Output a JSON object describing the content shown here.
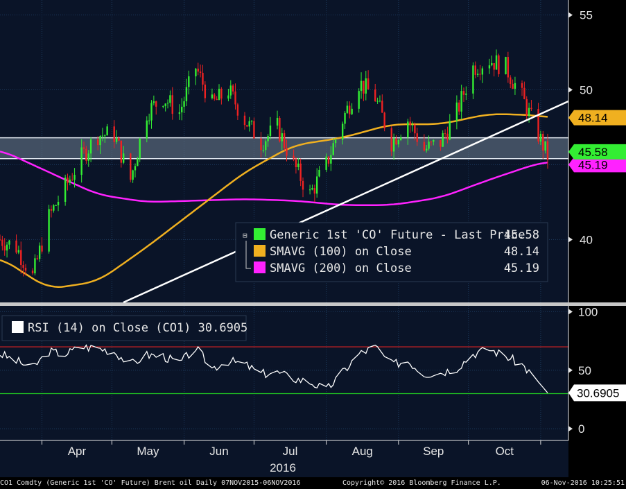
{
  "colors": {
    "background": "#0a1428",
    "price_green": "#33ee33",
    "price_red": "#ee2222",
    "sma100": "#f0b020",
    "sma200": "#ff22ff",
    "rsi": "#ffffff",
    "rsi_upper": "#dd2222",
    "rsi_lower": "#22cc22",
    "trendline": "#ffffff"
  },
  "chart_data": [
    {
      "type": "candlestick",
      "panel": "price",
      "y_ticks": [
        40,
        50,
        55
      ],
      "ylim": [
        35.8,
        56
      ],
      "x_months": [
        "Apr",
        "May",
        "Jun",
        "Jul",
        "Aug",
        "Sep",
        "Oct"
      ],
      "x_year": "2016",
      "legend": [
        {
          "label": "Generic 1st 'CO' Future - Last Price",
          "value": "45.58",
          "color": "#33ee33"
        },
        {
          "label": "SMAVG (100) on Close",
          "value": "48.14",
          "color": "#f0b020"
        },
        {
          "label": "SMAVG (200) on Close",
          "value": "45.19",
          "color": "#ff22ff"
        }
      ],
      "last_labels": [
        {
          "value": "48.14",
          "bg": "#f0b020"
        },
        {
          "value": "45.58",
          "bg": "#33ee33"
        },
        {
          "value": "45.19",
          "bg": "#ff22ff"
        }
      ],
      "close_series": {
        "dates": [
          "2016-03-14",
          "2016-03-21",
          "2016-03-28",
          "2016-04-04",
          "2016-04-11",
          "2016-04-18",
          "2016-04-25",
          "2016-05-02",
          "2016-05-09",
          "2016-05-16",
          "2016-05-23",
          "2016-05-30",
          "2016-06-06",
          "2016-06-13",
          "2016-06-20",
          "2016-06-27",
          "2016-07-04",
          "2016-07-11",
          "2016-07-18",
          "2016-07-25",
          "2016-08-01",
          "2016-08-08",
          "2016-08-15",
          "2016-08-22",
          "2016-08-29",
          "2016-09-05",
          "2016-09-12",
          "2016-09-19",
          "2016-09-26",
          "2016-10-03",
          "2016-10-10",
          "2016-10-17",
          "2016-10-24",
          "2016-10-31",
          "2016-11-04"
        ],
        "close": [
          40.0,
          39.5,
          37.5,
          41.5,
          43.5,
          45.5,
          47.0,
          47.0,
          44.0,
          48.5,
          49.5,
          48.5,
          51.5,
          49.0,
          50.0,
          48.0,
          46.5,
          47.5,
          45.0,
          43.0,
          45.0,
          48.0,
          50.5,
          49.5,
          46.5,
          48.0,
          46.0,
          46.5,
          48.5,
          51.5,
          52.0,
          51.5,
          49.5,
          47.0,
          45.58
        ]
      },
      "sma100_series": {
        "dates": [
          "2016-03-14",
          "2016-04-04",
          "2016-04-25",
          "2016-05-16",
          "2016-06-06",
          "2016-06-27",
          "2016-07-18",
          "2016-08-08",
          "2016-08-29",
          "2016-09-19",
          "2016-10-10",
          "2016-10-31",
          "2016-11-04"
        ],
        "values": [
          38.8,
          36.7,
          37.2,
          39.5,
          42.0,
          44.5,
          46.3,
          46.8,
          47.7,
          47.7,
          48.4,
          48.3,
          48.14
        ]
      },
      "sma200_series": {
        "dates": [
          "2016-03-14",
          "2016-04-04",
          "2016-04-25",
          "2016-05-16",
          "2016-06-06",
          "2016-06-27",
          "2016-07-18",
          "2016-08-08",
          "2016-08-29",
          "2016-09-19",
          "2016-10-10",
          "2016-10-31",
          "2016-11-04"
        ],
        "values": [
          46.0,
          44.5,
          43.0,
          42.5,
          42.6,
          42.7,
          42.6,
          42.3,
          42.3,
          42.8,
          44.0,
          45.1,
          45.19
        ]
      },
      "support_zone": [
        45.4,
        46.8
      ]
    },
    {
      "type": "line",
      "panel": "rsi",
      "legend": "RSI (14) on Close (CO1) 30.6905",
      "last_label": "30.6905",
      "y_ticks": [
        0,
        50,
        100
      ],
      "ylim": [
        -10,
        105
      ],
      "thresholds": [
        30,
        70
      ],
      "series": {
        "dates": [
          "2016-03-14",
          "2016-03-21",
          "2016-03-28",
          "2016-04-04",
          "2016-04-11",
          "2016-04-18",
          "2016-04-25",
          "2016-05-02",
          "2016-05-09",
          "2016-05-16",
          "2016-05-23",
          "2016-05-30",
          "2016-06-06",
          "2016-06-13",
          "2016-06-20",
          "2016-06-27",
          "2016-07-04",
          "2016-07-11",
          "2016-07-18",
          "2016-07-25",
          "2016-08-01",
          "2016-08-08",
          "2016-08-15",
          "2016-08-22",
          "2016-08-29",
          "2016-09-05",
          "2016-09-12",
          "2016-09-19",
          "2016-09-26",
          "2016-10-03",
          "2016-10-10",
          "2016-10-17",
          "2016-10-24",
          "2016-10-31",
          "2016-11-04"
        ],
        "values": [
          64,
          58,
          52,
          66,
          64,
          70,
          69,
          66,
          55,
          63,
          62,
          56,
          69,
          52,
          58,
          55,
          47,
          48,
          43,
          40,
          33,
          48,
          64,
          70,
          55,
          58,
          47,
          48,
          52,
          64,
          68,
          62,
          55,
          40,
          30.69
        ]
      }
    }
  ],
  "footer": {
    "source": "CO1 Comdty (Generic 1st 'CO' Future) Brent oil  Daily 07NOV2015-06NOV2016",
    "copyright": "Copyright© 2016 Bloomberg Finance L.P.",
    "timestamp": "06-Nov-2016 10:25:51"
  }
}
